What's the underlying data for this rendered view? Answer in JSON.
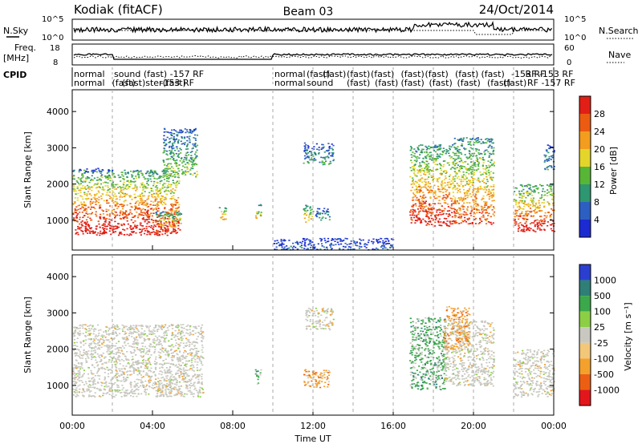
{
  "header": {
    "radar": "Kodiak (fitACF)",
    "beam": "Beam 03",
    "date": "24/Oct/2014"
  },
  "summary": {
    "nsky_label": "N.Sky",
    "nsearch_label": "N.Search",
    "nsky_ticks": [
      "10^5",
      "10^0"
    ],
    "freq_label": "Freq.",
    "freq_unit": "[MHz]",
    "freq_ticks": [
      "18",
      "8"
    ],
    "nave_label": "Nave",
    "nave_ticks": [
      "60",
      "0"
    ],
    "cpid_label": "CPID",
    "cpid_entries": [
      {
        "row": 1,
        "text": "normal",
        "hour": 0.0
      },
      {
        "row": 1,
        "text": "sound (fast) -157 RF",
        "hour": 2.0
      },
      {
        "row": 2,
        "text": "normal",
        "hour": 0.0
      },
      {
        "row": 2,
        "text": "(fast)",
        "hour": 1.9
      },
      {
        "row": 2,
        "text": "(fast)ster(fast)",
        "hour": 2.4
      },
      {
        "row": 2,
        "text": "-153 RF",
        "hour": 4.3
      },
      {
        "row": 1,
        "text": "normal",
        "hour": 10.0
      },
      {
        "row": 1,
        "text": "(fast)",
        "hour": 11.6
      },
      {
        "row": 1,
        "text": "(fast)",
        "hour": 12.4
      },
      {
        "row": 1,
        "text": "(fast)",
        "hour": 13.6
      },
      {
        "row": 1,
        "text": "(fast)",
        "hour": 14.8
      },
      {
        "row": 1,
        "text": "(fast)",
        "hour": 16.3
      },
      {
        "row": 1,
        "text": "(fast)",
        "hour": 17.5
      },
      {
        "row": 1,
        "text": "(fast)",
        "hour": 19.0
      },
      {
        "row": 1,
        "text": "(fast)",
        "hour": 20.3
      },
      {
        "row": 1,
        "text": "-153 RF",
        "hour": 21.8
      },
      {
        "row": 1,
        "text": "RF -153 RF",
        "hour": 22.5
      },
      {
        "row": 2,
        "text": "normal",
        "hour": 10.0
      },
      {
        "row": 2,
        "text": "sound",
        "hour": 11.6
      },
      {
        "row": 2,
        "text": "(fast)",
        "hour": 13.6
      },
      {
        "row": 2,
        "text": "(fast)",
        "hour": 15.0
      },
      {
        "row": 2,
        "text": "(fast)",
        "hour": 16.3
      },
      {
        "row": 2,
        "text": "(fast)",
        "hour": 17.7
      },
      {
        "row": 2,
        "text": "(fast)",
        "hour": 19.1
      },
      {
        "row": 2,
        "text": "(fast)",
        "hour": 20.6
      },
      {
        "row": 2,
        "text": "(fast)",
        "hour": 21.4
      },
      {
        "row": 2,
        "text": "RF -157 RF",
        "hour": 22.6
      }
    ]
  },
  "chart_data": [
    {
      "type": "heatmap",
      "name": "power",
      "ylabel": "Slant Range [km]",
      "ylim": [
        180,
        4600
      ],
      "yticks": [
        1000,
        2000,
        3000,
        4000
      ],
      "xlim": [
        0,
        24
      ],
      "colorbar_label": "Power [dB]",
      "colorbar_ticks": [
        4,
        8,
        12,
        16,
        20,
        24,
        28
      ],
      "colorscale": [
        "#1c2bd1",
        "#2d5fc2",
        "#2e9670",
        "#58b637",
        "#e4d52a",
        "#f29d1e",
        "#ec5b12",
        "#e11f16"
      ],
      "blobs": [
        {
          "t0": 0.0,
          "t1": 5.3,
          "r0": 600,
          "r1": 2400,
          "level": 0.88
        },
        {
          "t0": 0.3,
          "t1": 2.0,
          "r0": 2350,
          "r1": 2450,
          "level": 0.1
        },
        {
          "t0": 4.1,
          "t1": 5.4,
          "r0": 650,
          "r1": 1250,
          "level": 0.75
        },
        {
          "t0": 4.5,
          "t1": 6.2,
          "r0": 2200,
          "r1": 3550,
          "level": 0.4
        },
        {
          "t0": 7.3,
          "t1": 7.7,
          "r0": 1030,
          "r1": 1380,
          "level": 0.62
        },
        {
          "t0": 9.1,
          "t1": 9.4,
          "r0": 1050,
          "r1": 1450,
          "level": 0.55
        },
        {
          "t0": 11.5,
          "t1": 12.0,
          "r0": 950,
          "r1": 1450,
          "level": 0.6
        },
        {
          "t0": 12.1,
          "t1": 12.8,
          "r0": 1000,
          "r1": 1350,
          "level": 0.3
        },
        {
          "t0": 11.5,
          "t1": 13.0,
          "r0": 2550,
          "r1": 3150,
          "level": 0.3
        },
        {
          "t0": 10.0,
          "t1": 16.0,
          "r0": 200,
          "r1": 520,
          "level": 0.15
        },
        {
          "t0": 16.8,
          "t1": 19.0,
          "r0": 850,
          "r1": 3100,
          "level": 0.8
        },
        {
          "t0": 19.0,
          "t1": 21.0,
          "r0": 900,
          "r1": 3300,
          "level": 0.7
        },
        {
          "t0": 22.0,
          "t1": 24.0,
          "r0": 700,
          "r1": 2000,
          "level": 0.85
        },
        {
          "t0": 23.5,
          "t1": 24.0,
          "r0": 2400,
          "r1": 3100,
          "level": 0.25
        }
      ]
    },
    {
      "type": "heatmap",
      "name": "velocity",
      "ylabel": "Slant Range [km]",
      "xlabel": "Time UT",
      "ylim": [
        180,
        4600
      ],
      "yticks": [
        1000,
        2000,
        3000,
        4000
      ],
      "xlim": [
        0,
        24
      ],
      "xticks": [
        "00:00",
        "04:00",
        "08:00",
        "12:00",
        "16:00",
        "20:00",
        "00:00"
      ],
      "xtick_hours": [
        0,
        4,
        8,
        12,
        16,
        20,
        24
      ],
      "colorbar_label": "Velocity [m s⁻¹]",
      "colorbar_ticks": [
        1000,
        500,
        100,
        25,
        -25,
        -100,
        -500,
        -1000
      ],
      "colorscale": [
        "#2a3fd0",
        "#2f7f77",
        "#3ba84b",
        "#8ccf45",
        "#c8c8c0",
        "#f2c77a",
        "#f3a12c",
        "#ec5f13",
        "#e3171b"
      ],
      "blobs": [
        {
          "t0": 0.0,
          "t1": 6.5,
          "r0": 700,
          "r1": 2700,
          "level": "ground"
        },
        {
          "t0": 4.2,
          "t1": 5.2,
          "r0": 700,
          "r1": 1200,
          "level": "ground"
        },
        {
          "t0": 9.1,
          "t1": 9.4,
          "r0": 1050,
          "r1": 1450,
          "level": "toward"
        },
        {
          "t0": 11.5,
          "t1": 12.8,
          "r0": 950,
          "r1": 1450,
          "level": "away"
        },
        {
          "t0": 11.6,
          "t1": 13.0,
          "r0": 2550,
          "r1": 3150,
          "level": "ground"
        },
        {
          "t0": 16.8,
          "t1": 18.6,
          "r0": 900,
          "r1": 2900,
          "level": "toward"
        },
        {
          "t0": 18.5,
          "t1": 21.0,
          "r0": 1000,
          "r1": 2800,
          "level": "ground"
        },
        {
          "t0": 18.5,
          "t1": 19.8,
          "r0": 2000,
          "r1": 3200,
          "level": "away"
        },
        {
          "t0": 22.0,
          "t1": 24.0,
          "r0": 700,
          "r1": 2000,
          "level": "ground"
        }
      ]
    }
  ]
}
